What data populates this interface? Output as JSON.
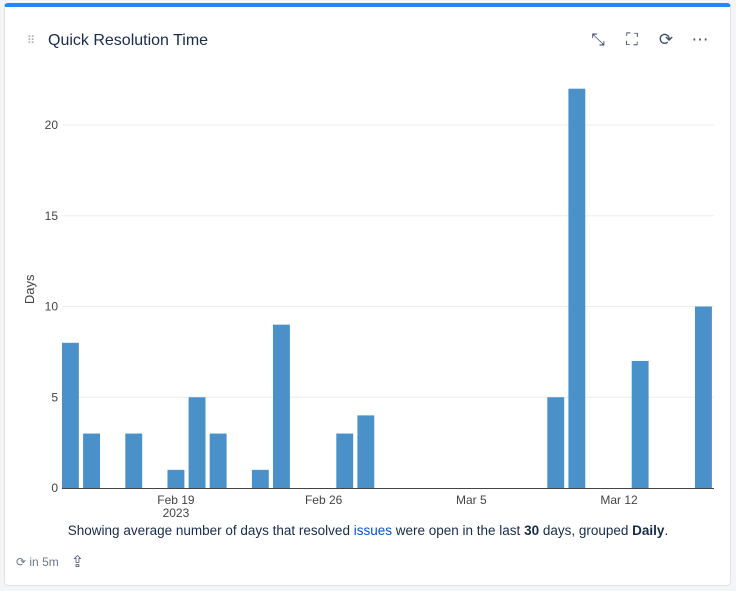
{
  "header": {
    "title": "Quick Resolution Time",
    "icons": [
      "collapse-icon",
      "fullscreen-icon",
      "refresh-icon",
      "more-icon"
    ]
  },
  "chart_data": {
    "type": "bar",
    "ylabel": "Days",
    "xlabel": "",
    "year_label": "2023",
    "ylim": [
      0,
      23
    ],
    "yticks": [
      0,
      5,
      10,
      15,
      20
    ],
    "xticks": [
      {
        "date": "2023-02-19",
        "label": "Feb 19"
      },
      {
        "date": "2023-02-26",
        "label": "Feb 26"
      },
      {
        "date": "2023-03-05",
        "label": "Mar 5"
      },
      {
        "date": "2023-03-12",
        "label": "Mar 12"
      }
    ],
    "xlim": [
      "2023-02-13",
      "2023-03-16"
    ],
    "grid": true,
    "color": "#4a90c9",
    "bars": [
      {
        "date": "2023-02-14",
        "value": 8
      },
      {
        "date": "2023-02-15",
        "value": 3
      },
      {
        "date": "2023-02-17",
        "value": 3
      },
      {
        "date": "2023-02-19",
        "value": 1
      },
      {
        "date": "2023-02-20",
        "value": 5
      },
      {
        "date": "2023-02-21",
        "value": 3
      },
      {
        "date": "2023-02-23",
        "value": 1
      },
      {
        "date": "2023-02-24",
        "value": 9
      },
      {
        "date": "2023-02-27",
        "value": 3
      },
      {
        "date": "2023-02-28",
        "value": 4
      },
      {
        "date": "2023-03-09",
        "value": 5
      },
      {
        "date": "2023-03-10",
        "value": 22
      },
      {
        "date": "2023-03-13",
        "value": 7
      },
      {
        "date": "2023-03-16",
        "value": 10
      }
    ]
  },
  "caption": {
    "prefix": "Showing average number of days that resolved ",
    "link": "issues",
    "middle": " were open in the last ",
    "days": "30",
    "suffix": " days, grouped ",
    "group": "Daily",
    "end": "."
  },
  "footer": {
    "refresh": "in 5m"
  }
}
